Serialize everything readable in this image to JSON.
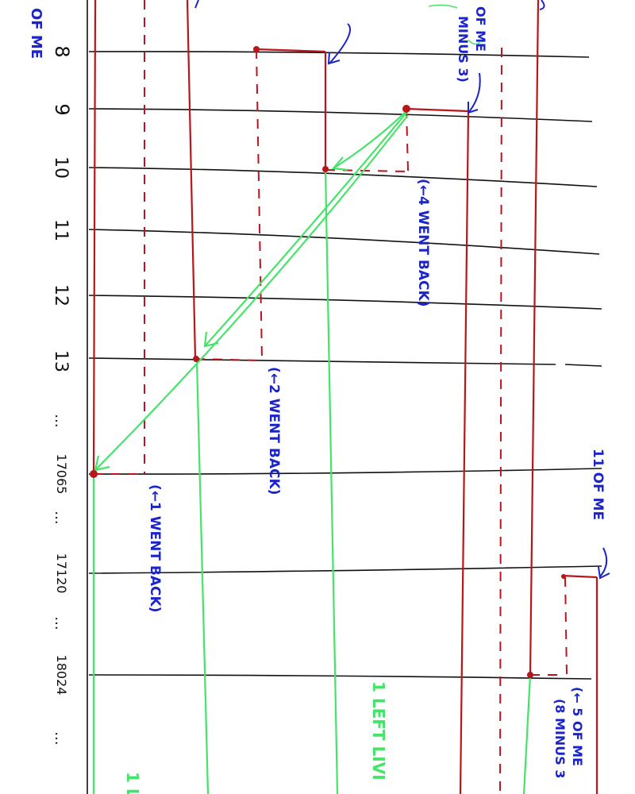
{
  "colors": {
    "ink": "#111111",
    "red": "#b8161a",
    "green": "#45e36a",
    "blue": "#1b24c8"
  },
  "axis_labels": [
    "8",
    "9",
    "10",
    "11",
    "12",
    "13",
    "...",
    "17065",
    "...",
    "17120",
    "...",
    "18024",
    "..."
  ],
  "annotations": {
    "top_left": "OF ME",
    "top_right_line1": "OF ME",
    "top_right_line2": "MINUS 3)",
    "went_back_4": "(←4 WENT BACK)",
    "went_back_2": "(←2 WENT BACK)",
    "went_back_1": "(←1 WENT BACK)",
    "eleven_of_me": "11 OF ME",
    "five_of_me_line1": "(← 5 OF ME",
    "five_of_me_line2": "(8 MINUS 3",
    "left_living": "1 LEFT LIVI",
    "left_bottom": "1 L"
  }
}
